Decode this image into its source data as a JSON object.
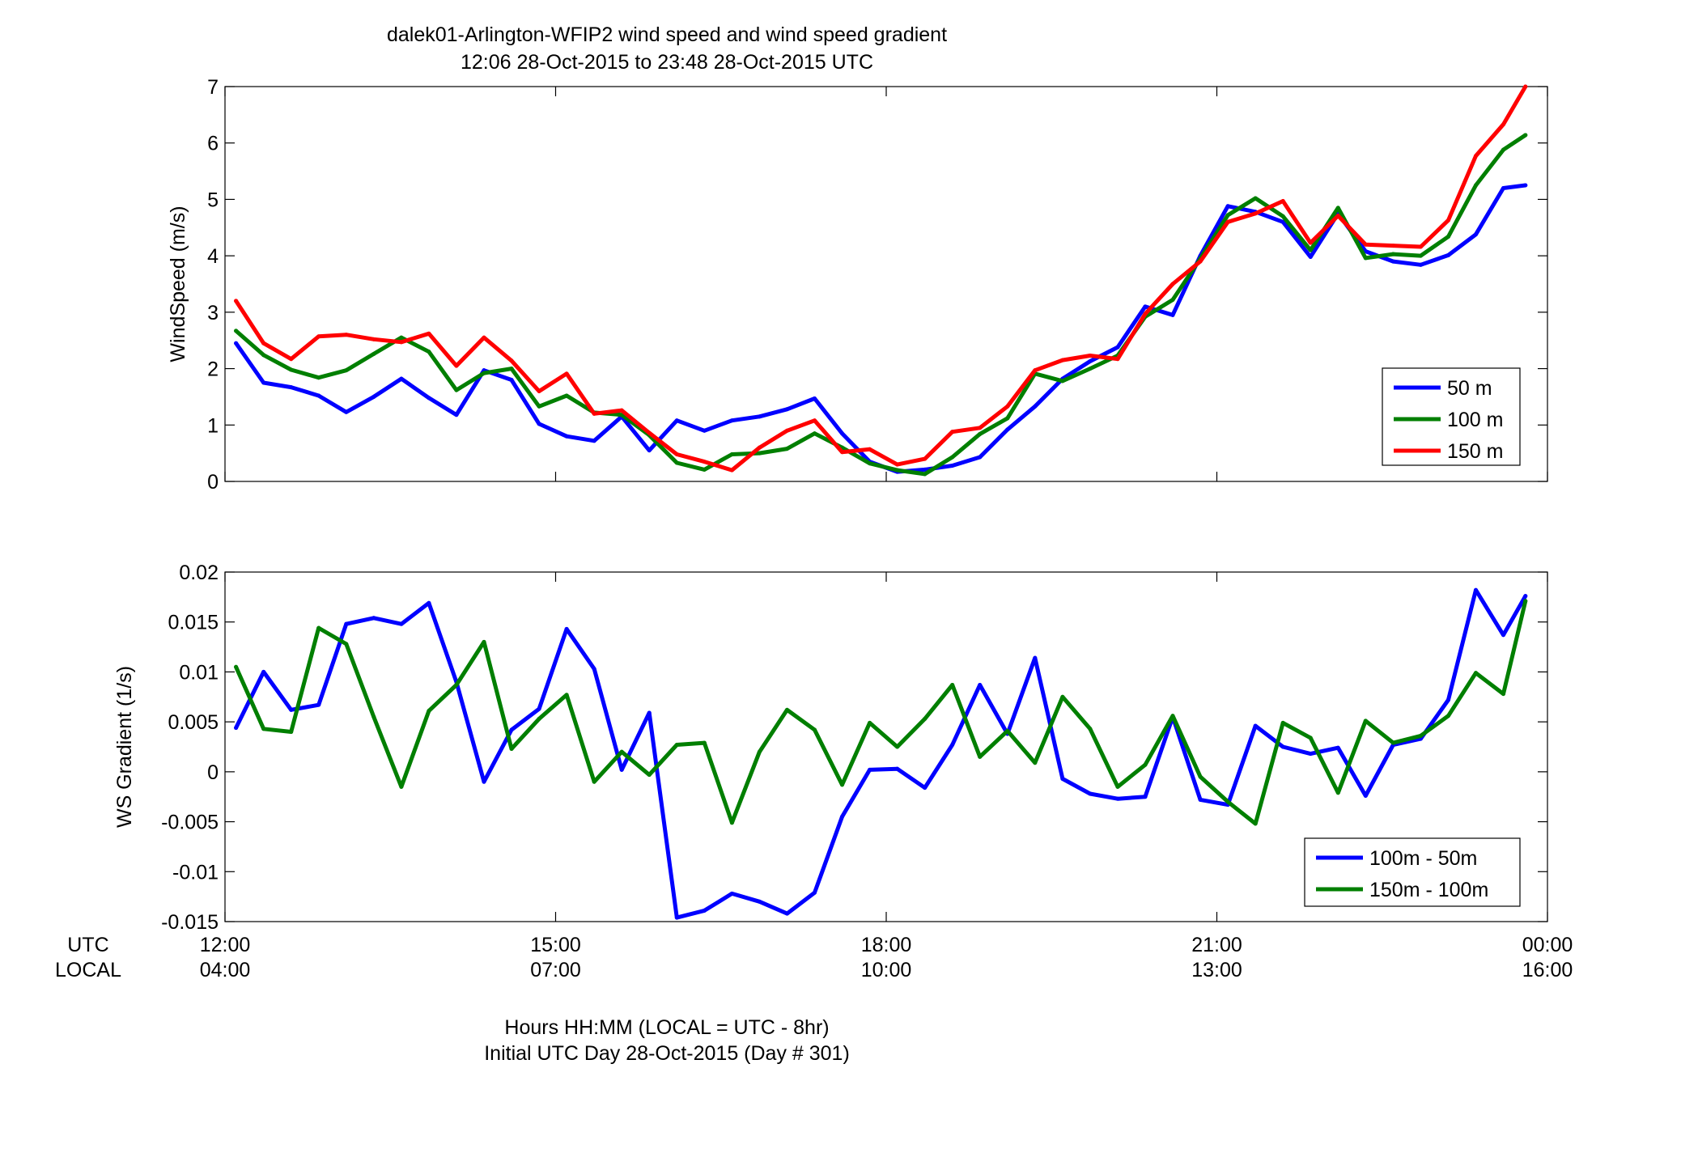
{
  "figure": {
    "title_line1": "dalek01-Arlington-WFIP2  wind speed and wind speed gradient",
    "title_line2": "12:06 28-Oct-2015 to 23:48 28-Oct-2015  UTC",
    "xlabel_line1": "Hours HH:MM  (LOCAL = UTC - 8hr)",
    "xlabel_line2": "Initial UTC Day 28-Oct-2015 (Day # 301)",
    "utc_row_label": "UTC",
    "local_row_label": "LOCAL"
  },
  "chart_data": [
    {
      "type": "line",
      "ylabel": "WindSpeed (m/s)",
      "xlim": [
        12.0,
        24.0
      ],
      "ylim": [
        0,
        7
      ],
      "yticks": [
        0,
        1,
        2,
        3,
        4,
        5,
        6,
        7
      ],
      "ytick_labels": [
        "0",
        "1",
        "2",
        "3",
        "4",
        "5",
        "6",
        "7"
      ],
      "grid": false,
      "legend_position": "lower-right",
      "x_hours_utc": [
        12.1,
        12.35,
        12.6,
        12.85,
        13.1,
        13.35,
        13.6,
        13.85,
        14.1,
        14.35,
        14.6,
        14.85,
        15.1,
        15.35,
        15.6,
        15.85,
        16.1,
        16.35,
        16.6,
        16.85,
        17.1,
        17.35,
        17.6,
        17.85,
        18.1,
        18.35,
        18.6,
        18.85,
        19.1,
        19.35,
        19.6,
        19.85,
        20.1,
        20.35,
        20.6,
        20.85,
        21.1,
        21.35,
        21.6,
        21.85,
        22.1,
        22.35,
        22.6,
        22.85,
        23.1,
        23.35,
        23.6,
        23.8
      ],
      "series": [
        {
          "name": "50 m",
          "color": "#0000ff",
          "values": [
            2.45,
            1.75,
            1.67,
            1.52,
            1.23,
            1.5,
            1.82,
            1.48,
            1.18,
            1.97,
            1.8,
            1.02,
            0.8,
            0.72,
            1.15,
            0.55,
            1.08,
            0.9,
            1.08,
            1.15,
            1.28,
            1.47,
            0.85,
            0.35,
            0.17,
            0.21,
            0.28,
            0.43,
            0.92,
            1.33,
            1.82,
            2.13,
            2.38,
            3.1,
            2.95,
            4.0,
            4.88,
            4.78,
            4.6,
            3.98,
            4.75,
            4.08,
            3.9,
            3.84,
            4.01,
            4.38,
            5.2,
            5.25
          ]
        },
        {
          "name": "100 m",
          "color": "#007f00",
          "values": [
            2.67,
            2.24,
            1.98,
            1.84,
            1.97,
            2.26,
            2.55,
            2.3,
            1.62,
            1.92,
            2.0,
            1.33,
            1.52,
            1.22,
            1.18,
            0.82,
            0.33,
            0.21,
            0.48,
            0.5,
            0.58,
            0.85,
            0.6,
            0.32,
            0.2,
            0.13,
            0.43,
            0.84,
            1.12,
            1.91,
            1.78,
            2.0,
            2.23,
            2.92,
            3.22,
            3.95,
            4.72,
            5.02,
            4.7,
            4.1,
            4.85,
            3.96,
            4.03,
            4.0,
            4.34,
            5.25,
            5.88,
            6.14
          ]
        },
        {
          "name": "150 m",
          "color": "#ff0000",
          "values": [
            3.2,
            2.45,
            2.17,
            2.57,
            2.6,
            2.52,
            2.47,
            2.62,
            2.05,
            2.55,
            2.14,
            1.6,
            1.91,
            1.2,
            1.26,
            0.86,
            0.48,
            0.35,
            0.2,
            0.6,
            0.9,
            1.08,
            0.52,
            0.57,
            0.3,
            0.4,
            0.88,
            0.95,
            1.33,
            1.97,
            2.15,
            2.23,
            2.17,
            2.97,
            3.5,
            3.9,
            4.6,
            4.75,
            4.97,
            4.23,
            4.71,
            4.2,
            4.18,
            4.16,
            4.63,
            5.77,
            6.33,
            7.0
          ]
        }
      ]
    },
    {
      "type": "line",
      "ylabel": "WS Gradient (1/s)",
      "xlim": [
        12.0,
        24.0
      ],
      "ylim": [
        -0.015,
        0.02
      ],
      "yticks": [
        -0.015,
        -0.01,
        -0.005,
        0,
        0.005,
        0.01,
        0.015,
        0.02
      ],
      "ytick_labels": [
        "-0.015",
        "-0.01",
        "-0.005",
        "0",
        "0.005",
        "0.01",
        "0.015",
        "0.02"
      ],
      "grid": false,
      "legend_position": "lower-right",
      "x_hours_utc": [
        12.1,
        12.35,
        12.6,
        12.85,
        13.1,
        13.35,
        13.6,
        13.85,
        14.1,
        14.35,
        14.6,
        14.85,
        15.1,
        15.35,
        15.6,
        15.85,
        16.1,
        16.35,
        16.6,
        16.85,
        17.1,
        17.35,
        17.6,
        17.85,
        18.1,
        18.35,
        18.6,
        18.85,
        19.1,
        19.35,
        19.6,
        19.85,
        20.1,
        20.35,
        20.6,
        20.85,
        21.1,
        21.35,
        21.6,
        21.85,
        22.1,
        22.35,
        22.6,
        22.85,
        23.1,
        23.35,
        23.6,
        23.8
      ],
      "series": [
        {
          "name": "100m - 50m",
          "color": "#0000ff",
          "values": [
            0.0044,
            0.01,
            0.0062,
            0.0067,
            0.0148,
            0.0154,
            0.0148,
            0.0169,
            0.009,
            -0.001,
            0.0042,
            0.0063,
            0.0143,
            0.0103,
            0.0002,
            0.0059,
            -0.0146,
            -0.0139,
            -0.0122,
            -0.013,
            -0.0142,
            -0.0121,
            -0.0045,
            0.0002,
            0.0003,
            -0.0016,
            0.0027,
            0.0087,
            0.0038,
            0.0114,
            -0.0007,
            -0.0022,
            -0.0027,
            -0.0025,
            0.0055,
            -0.0028,
            -0.0033,
            0.0046,
            0.0025,
            0.0018,
            0.0024,
            -0.0024,
            0.0027,
            0.0033,
            0.0072,
            0.0182,
            0.0137,
            0.0176
          ]
        },
        {
          "name": "150m - 100m",
          "color": "#007f00",
          "values": [
            0.0105,
            0.0043,
            0.004,
            0.0144,
            0.0128,
            0.0055,
            -0.0015,
            0.0061,
            0.0087,
            0.013,
            0.0023,
            0.0053,
            0.0077,
            -0.001,
            0.002,
            -0.0003,
            0.0027,
            0.0029,
            -0.0051,
            0.002,
            0.0062,
            0.0042,
            -0.0013,
            0.0049,
            0.0025,
            0.0053,
            0.0087,
            0.0015,
            0.0041,
            0.0009,
            0.0075,
            0.0043,
            -0.0015,
            0.0007,
            0.0056,
            -0.0005,
            -0.003,
            -0.0052,
            0.0049,
            0.0034,
            -0.0021,
            0.0051,
            0.0029,
            0.0036,
            0.0056,
            0.0099,
            0.0078,
            0.0171
          ]
        }
      ]
    }
  ],
  "x_axis": {
    "tick_hours_utc": [
      12,
      15,
      18,
      21,
      24
    ],
    "utc_tick_labels": [
      "12:00",
      "15:00",
      "18:00",
      "21:00",
      "00:00"
    ],
    "local_tick_labels": [
      "04:00",
      "07:00",
      "10:00",
      "13:00",
      "16:00"
    ]
  }
}
